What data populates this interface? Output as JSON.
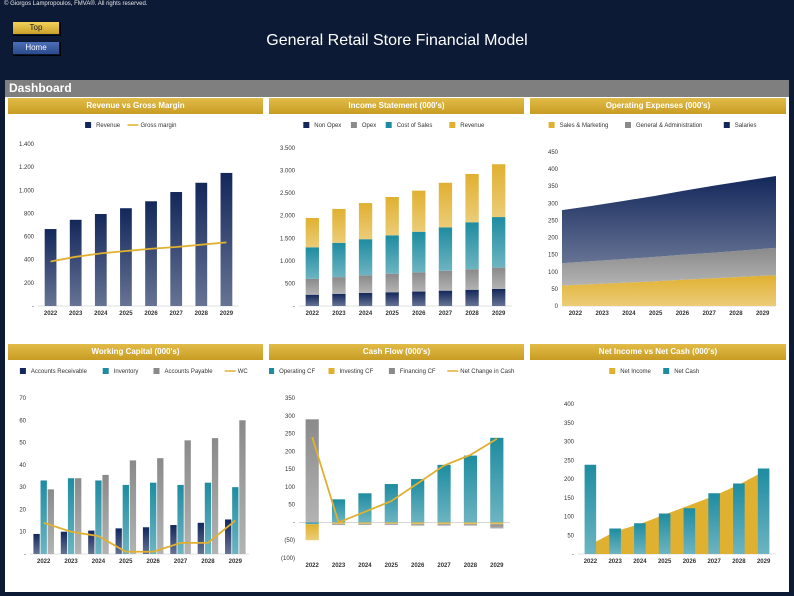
{
  "copyright": "© Giorgos Lampropoulos, FMVA®.  All rights reserved.",
  "nav": {
    "top_label": "Top",
    "home_label": "Home"
  },
  "title": "General Retail Store Financial Model",
  "dashboard_label": "Dashboard",
  "colors": {
    "navy": "#13275a",
    "teal": "#1e8ca0",
    "gold": "#e0b030",
    "gray": "#8a8a8a",
    "darkgray": "#5e5e5e"
  },
  "chart_data": [
    {
      "id": "rev",
      "type": "bar",
      "title": "Revenue vs Gross Margin",
      "categories": [
        "2022",
        "2023",
        "2024",
        "2025",
        "2026",
        "2027",
        "2028",
        "2029"
      ],
      "series": [
        {
          "name": "Revenue",
          "kind": "bar",
          "color": "#13275a",
          "values": [
            665,
            745,
            795,
            845,
            905,
            985,
            1065,
            1150
          ]
        },
        {
          "name": "Gross margin",
          "kind": "line",
          "color": "#e0b030",
          "values": [
            385,
            425,
            455,
            475,
            495,
            510,
            530,
            550
          ]
        }
      ],
      "ylim": [
        0,
        1400
      ],
      "yticks": [
        0,
        200,
        400,
        600,
        800,
        1000,
        1200,
        1400
      ],
      "ytick_labels": [
        "-",
        "200",
        "400",
        "600",
        "800",
        "1.000",
        "1.200",
        "1.400"
      ],
      "legend": "top"
    },
    {
      "id": "inc",
      "type": "bar",
      "stacked": true,
      "title": "Income Statement (000's)",
      "categories": [
        "2022",
        "2023",
        "2024",
        "2025",
        "2026",
        "2027",
        "2028",
        "2029"
      ],
      "series": [
        {
          "name": "Non Opex",
          "color": "#13275a",
          "values": [
            250,
            270,
            290,
            305,
            320,
            340,
            360,
            380
          ]
        },
        {
          "name": "Opex",
          "color": "#8a8a8a",
          "values": [
            350,
            370,
            390,
            410,
            425,
            440,
            455,
            470
          ]
        },
        {
          "name": "Cost of Sales",
          "color": "#1e8ca0",
          "values": [
            700,
            760,
            800,
            850,
            900,
            960,
            1040,
            1120
          ]
        },
        {
          "name": "Revenue",
          "color": "#e0b030",
          "values": [
            650,
            750,
            800,
            850,
            910,
            990,
            1070,
            1170
          ]
        }
      ],
      "ylim": [
        0,
        3500
      ],
      "yticks": [
        0,
        500,
        1000,
        1500,
        2000,
        2500,
        3000,
        3500
      ],
      "ytick_labels": [
        "-",
        "500",
        "1.000",
        "1.500",
        "2.000",
        "2.500",
        "3.000",
        "3.500"
      ],
      "legend": "top"
    },
    {
      "id": "opx",
      "type": "area",
      "stacked": true,
      "title": "Operating Expenses (000's)",
      "categories": [
        "2022",
        "2023",
        "2024",
        "2025",
        "2026",
        "2027",
        "2028",
        "2029"
      ],
      "series": [
        {
          "name": "Sales & Marketing",
          "color": "#e0b030",
          "values": [
            60,
            64,
            68,
            72,
            77,
            81,
            86,
            90
          ]
        },
        {
          "name": "General & Administration",
          "color": "#8a8a8a",
          "values": [
            65,
            67,
            69,
            71,
            73,
            75,
            77,
            80
          ]
        },
        {
          "name": "Salaries",
          "color": "#13275a",
          "values": [
            155,
            162,
            170,
            178,
            187,
            196,
            203,
            210
          ]
        }
      ],
      "ylim": [
        0,
        450
      ],
      "yticks": [
        0,
        50,
        100,
        150,
        200,
        250,
        300,
        350,
        400,
        450
      ],
      "ytick_labels": [
        "0",
        "50",
        "100",
        "150",
        "200",
        "250",
        "300",
        "350",
        "400",
        "450"
      ],
      "legend": "top"
    },
    {
      "id": "wc",
      "type": "bar",
      "title": "Working Capital (000's)",
      "categories": [
        "2022",
        "2023",
        "2024",
        "2025",
        "2026",
        "2027",
        "2028",
        "2029"
      ],
      "series": [
        {
          "name": "Accounts Receivable",
          "kind": "bar",
          "color": "#13275a",
          "values": [
            9,
            10,
            10.5,
            11.5,
            12,
            13,
            14,
            15.5
          ]
        },
        {
          "name": "Inventory",
          "kind": "bar",
          "color": "#1e8ca0",
          "values": [
            33,
            34,
            33,
            31,
            32,
            31,
            32,
            30
          ]
        },
        {
          "name": "Accounts Payable",
          "kind": "bar",
          "color": "#8a8a8a",
          "values": [
            29,
            34,
            35.5,
            42,
            43,
            51,
            52,
            60
          ]
        },
        {
          "name": "WC",
          "kind": "line",
          "color": "#e0b030",
          "values": [
            14,
            10,
            8,
            1,
            1,
            5,
            5,
            15
          ]
        }
      ],
      "ylim": [
        0,
        70
      ],
      "yticks": [
        0,
        10,
        20,
        30,
        40,
        50,
        60,
        70
      ],
      "ytick_labels": [
        "-",
        "10",
        "20",
        "30",
        "40",
        "50",
        "60",
        "70"
      ],
      "legend": "top"
    },
    {
      "id": "cf",
      "type": "bar",
      "stacked": true,
      "title": "Cash Flow (000's)",
      "categories": [
        "2022",
        "2023",
        "2024",
        "2025",
        "2026",
        "2027",
        "2028",
        "2029"
      ],
      "series": [
        {
          "name": "Operating CF",
          "kind": "bar",
          "color": "#1e8ca0",
          "values": [
            -5,
            65,
            82,
            108,
            122,
            162,
            188,
            238
          ]
        },
        {
          "name": "Investing CF",
          "kind": "bar",
          "color": "#e0b030",
          "values": [
            -45,
            -4,
            -4,
            -4,
            -5,
            -5,
            -5,
            -5
          ]
        },
        {
          "name": "Financing CF",
          "kind": "bar",
          "color": "#8a8a8a",
          "values": [
            290,
            -3,
            -3,
            -3,
            -4,
            -4,
            -4,
            -12
          ]
        },
        {
          "name": "Net Change in Cash",
          "kind": "line",
          "color": "#e0b030",
          "values": [
            240,
            0,
            30,
            60,
            110,
            160,
            190,
            235
          ]
        }
      ],
      "ylim": [
        -100,
        350
      ],
      "yticks": [
        -100,
        -50,
        0,
        50,
        100,
        150,
        200,
        250,
        300,
        350
      ],
      "ytick_labels": [
        "(100)",
        "(50)",
        "-",
        "50",
        "100",
        "150",
        "200",
        "250",
        "300",
        "350"
      ],
      "legend": "top"
    },
    {
      "id": "nic",
      "type": "area",
      "title": "Net Income vs Net Cash (000's)",
      "categories": [
        "2022",
        "2023",
        "2024",
        "2025",
        "2026",
        "2027",
        "2028",
        "2029"
      ],
      "series": [
        {
          "name": "Net Income",
          "kind": "area",
          "color": "#e0b030",
          "values": [
            25,
            60,
            80,
            105,
            130,
            155,
            185,
            220
          ]
        },
        {
          "name": "Net Cash",
          "kind": "bar",
          "color": "#1e8ca0",
          "values": [
            238,
            68,
            82,
            108,
            122,
            162,
            188,
            228
          ]
        }
      ],
      "ylim": [
        0,
        400
      ],
      "yticks": [
        0,
        50,
        100,
        150,
        200,
        250,
        300,
        350,
        400
      ],
      "ytick_labels": [
        "-",
        "50",
        "100",
        "150",
        "200",
        "250",
        "300",
        "350",
        "400"
      ],
      "legend": "top"
    }
  ]
}
